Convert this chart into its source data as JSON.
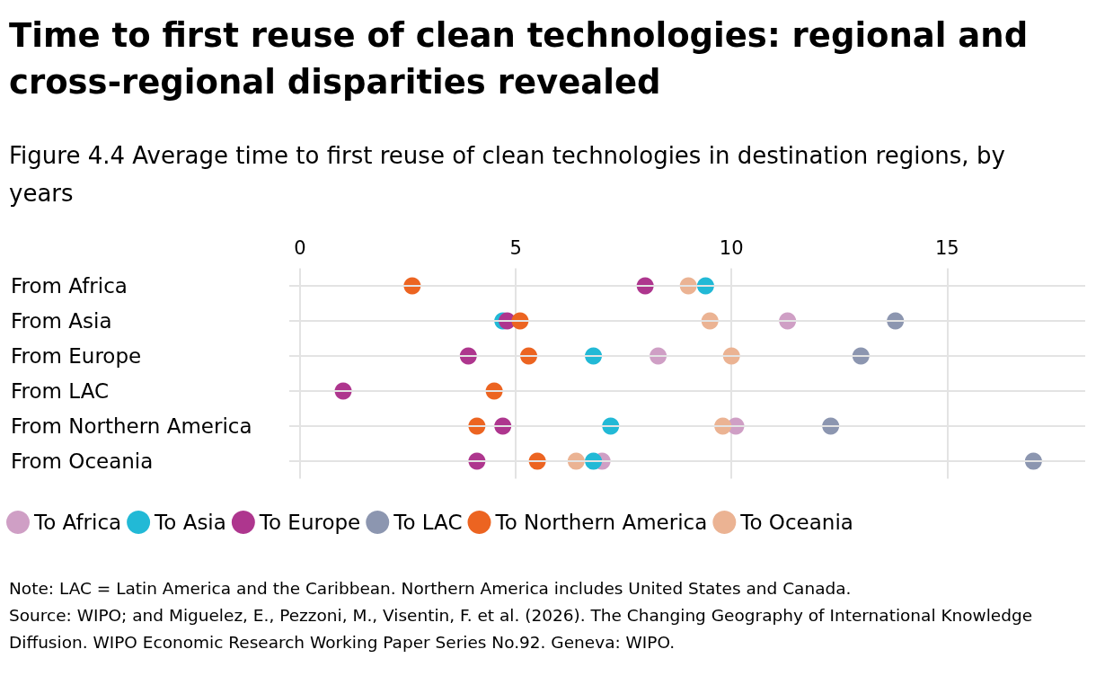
{
  "chart_data": {
    "type": "scatter",
    "title": "Time to first reuse of clean technologies: regional and cross-regional disparities revealed",
    "subtitle": "Figure 4.4 Average time to first reuse of clean technologies in destination regions, by years",
    "orientation": "horizontal",
    "categories": [
      "From Africa",
      "From Asia",
      "From Europe",
      "From LAC",
      "From Northern America",
      "From Oceania"
    ],
    "series": [
      {
        "name": "To Africa",
        "color": "#cf9fc5",
        "values": [
          null,
          11.3,
          8.3,
          null,
          10.1,
          7.0
        ]
      },
      {
        "name": "To Asia",
        "color": "#22b9d6",
        "values": [
          9.4,
          4.7,
          6.8,
          null,
          7.2,
          6.8
        ]
      },
      {
        "name": "To Europe",
        "color": "#ae368e",
        "values": [
          8.0,
          4.8,
          3.9,
          1.0,
          4.7,
          4.1
        ]
      },
      {
        "name": "To LAC",
        "color": "#8c96b0",
        "values": [
          null,
          13.8,
          13.0,
          null,
          12.3,
          17.0
        ]
      },
      {
        "name": "To Northern America",
        "color": "#ec6421",
        "values": [
          2.6,
          5.1,
          5.3,
          4.5,
          4.1,
          5.5
        ]
      },
      {
        "name": "To Oceania",
        "color": "#ebb393",
        "values": [
          9.0,
          9.5,
          10.0,
          null,
          9.8,
          6.4
        ]
      }
    ],
    "xlim": [
      -0.25,
      18.2
    ],
    "xticks": [
      0,
      5,
      10,
      15
    ],
    "grid": true,
    "legend": "bottom",
    "marker": "circle",
    "annotations": [
      "Note: LAC = Latin America and the Caribbean. Northern America includes United States and Canada.",
      "Source: WIPO; and Miguelez, E., Pezzoni, M., Visentin, F. et al. (2026). The Changing Geography of International Knowledge Diffusion. WIPO Economic Research Working Paper Series No.92. Geneva: WIPO."
    ]
  }
}
